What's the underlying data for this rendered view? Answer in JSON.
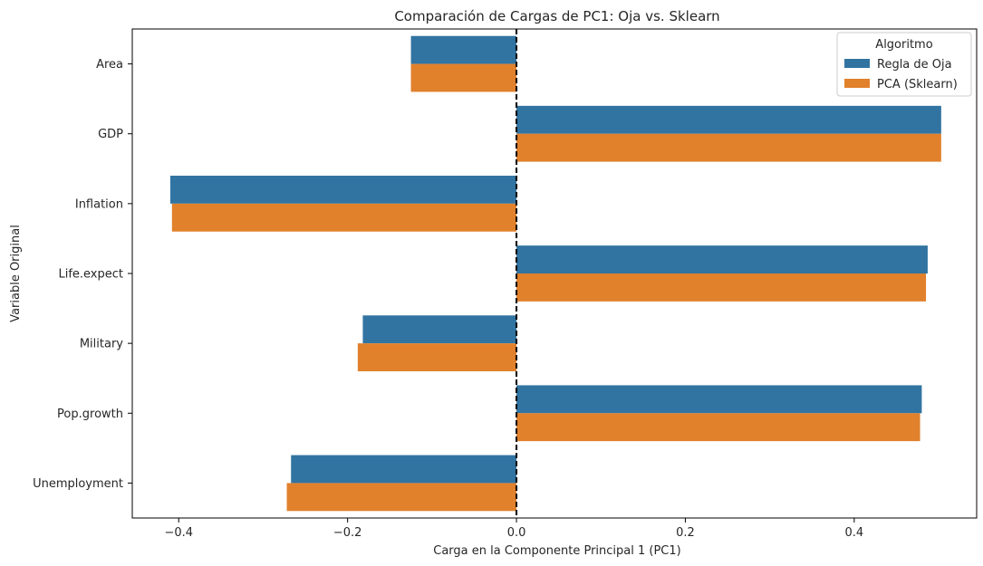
{
  "chart_data": {
    "type": "bar",
    "orientation": "horizontal",
    "title": "Comparación de Cargas de PC1: Oja vs. Sklearn",
    "xlabel": "Carga en la Componente Principal 1 (PC1)",
    "ylabel": "Variable Original",
    "categories": [
      "Area",
      "GDP",
      "Inflation",
      "Life.expect",
      "Military",
      "Pop.growth",
      "Unemployment"
    ],
    "xlim": [
      -0.455,
      0.545
    ],
    "xticks": [
      -0.4,
      -0.2,
      0.0,
      0.2,
      0.4
    ],
    "xtick_labels": [
      "−0.4",
      "−0.2",
      "0.0",
      "0.2",
      "0.4"
    ],
    "reference_line": {
      "x": 0.0,
      "style": "dashed",
      "color": "#000000"
    },
    "grid": false,
    "legend": {
      "title": "Algoritmo",
      "placement": "top-right"
    },
    "series": [
      {
        "name": "Regla de Oja",
        "color": "#3274a1",
        "values": [
          -0.125,
          0.503,
          -0.41,
          0.487,
          -0.182,
          0.48,
          -0.267
        ]
      },
      {
        "name": "PCA (Sklearn)",
        "color": "#e1812c",
        "values": [
          -0.125,
          0.503,
          -0.408,
          0.485,
          -0.188,
          0.478,
          -0.272
        ]
      }
    ]
  }
}
